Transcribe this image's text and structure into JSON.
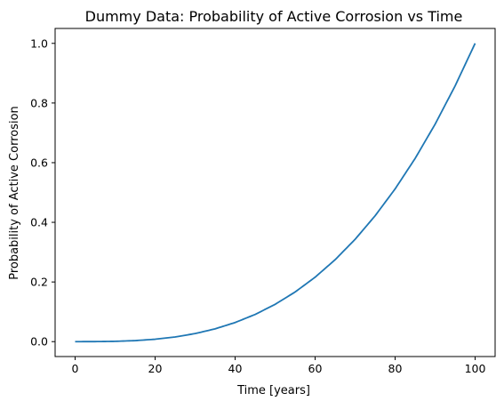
{
  "chart_data": {
    "type": "line",
    "title": "Dummy Data: Probability of Active Corrosion vs Time",
    "xlabel": "Time [years]",
    "ylabel": "Probability of Active Corrosion",
    "xlim": [
      -5,
      105
    ],
    "ylim": [
      -0.05,
      1.05
    ],
    "xticks": [
      0,
      20,
      40,
      60,
      80,
      100
    ],
    "xtick_labels": [
      "0",
      "20",
      "40",
      "60",
      "80",
      "100"
    ],
    "yticks": [
      0.0,
      0.2,
      0.4,
      0.6,
      0.8,
      1.0
    ],
    "ytick_labels": [
      "0.0",
      "0.2",
      "0.4",
      "0.6",
      "0.8",
      "1.0"
    ],
    "grid": false,
    "series": [
      {
        "color": "#1f77b4",
        "x": [
          0,
          5,
          10,
          15,
          20,
          25,
          30,
          35,
          40,
          45,
          50,
          55,
          60,
          65,
          70,
          75,
          80,
          85,
          90,
          95,
          100
        ],
        "y": [
          0.0,
          0.0001,
          0.001,
          0.0034,
          0.008,
          0.0156,
          0.027,
          0.0429,
          0.064,
          0.0911,
          0.125,
          0.1664,
          0.216,
          0.2746,
          0.343,
          0.4219,
          0.512,
          0.6141,
          0.729,
          0.8574,
          1.0
        ]
      }
    ]
  }
}
